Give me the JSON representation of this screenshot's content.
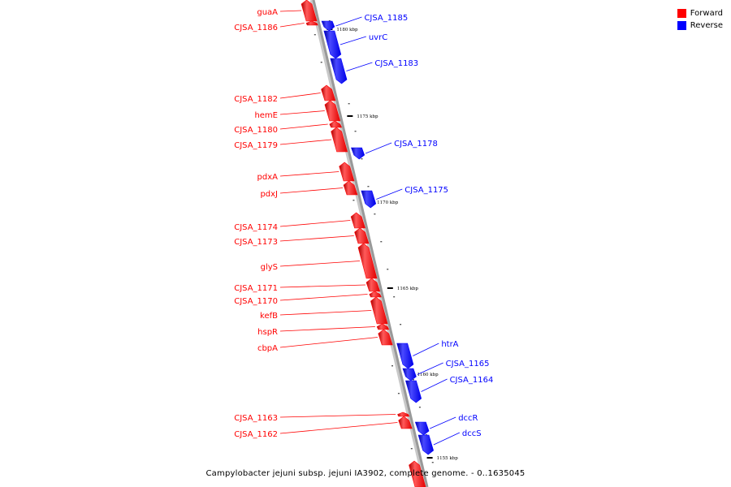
{
  "legend": {
    "forward_label": "Forward",
    "reverse_label": "Reverse"
  },
  "colors": {
    "forward": "#ff0000",
    "reverse": "#0000ff",
    "backbone": "#999999"
  },
  "footer": {
    "title": "Campylobacter jejuni subsp. jejuni IA3902, complete genome. - 0..1635045"
  },
  "ticks": [
    {
      "label": "1180 kbp",
      "kbp": 1180
    },
    {
      "label": "1175 kbp",
      "kbp": 1175
    },
    {
      "label": "1170 kbp",
      "kbp": 1170
    },
    {
      "label": "1165 kbp",
      "kbp": 1165
    },
    {
      "label": "1160 kbp",
      "kbp": 1160
    },
    {
      "label": "1155 kbp",
      "kbp": 1155
    }
  ],
  "genes": [
    {
      "name": "guaA",
      "strand": "forward"
    },
    {
      "name": "CJSA_1186",
      "strand": "forward"
    },
    {
      "name": "CJSA_1185",
      "strand": "reverse"
    },
    {
      "name": "uvrC",
      "strand": "reverse"
    },
    {
      "name": "CJSA_1183",
      "strand": "reverse"
    },
    {
      "name": "CJSA_1182",
      "strand": "forward"
    },
    {
      "name": "hemE",
      "strand": "forward"
    },
    {
      "name": "CJSA_1180",
      "strand": "forward"
    },
    {
      "name": "CJSA_1179",
      "strand": "forward"
    },
    {
      "name": "CJSA_1178",
      "strand": "reverse"
    },
    {
      "name": "pdxA",
      "strand": "forward"
    },
    {
      "name": "pdxJ",
      "strand": "forward"
    },
    {
      "name": "CJSA_1175",
      "strand": "reverse"
    },
    {
      "name": "CJSA_1174",
      "strand": "forward"
    },
    {
      "name": "CJSA_1173",
      "strand": "forward"
    },
    {
      "name": "glyS",
      "strand": "forward"
    },
    {
      "name": "CJSA_1171",
      "strand": "forward"
    },
    {
      "name": "CJSA_1170",
      "strand": "forward"
    },
    {
      "name": "kefB",
      "strand": "forward"
    },
    {
      "name": "hspR",
      "strand": "forward"
    },
    {
      "name": "cbpA",
      "strand": "forward"
    },
    {
      "name": "htrA",
      "strand": "reverse"
    },
    {
      "name": "CJSA_1165",
      "strand": "reverse"
    },
    {
      "name": "CJSA_1164",
      "strand": "reverse"
    },
    {
      "name": "CJSA_1163",
      "strand": "forward"
    },
    {
      "name": "CJSA_1162",
      "strand": "forward"
    },
    {
      "name": "dccR",
      "strand": "reverse"
    },
    {
      "name": "dccS",
      "strand": "reverse"
    },
    {
      "name": "",
      "strand": "forward"
    }
  ]
}
